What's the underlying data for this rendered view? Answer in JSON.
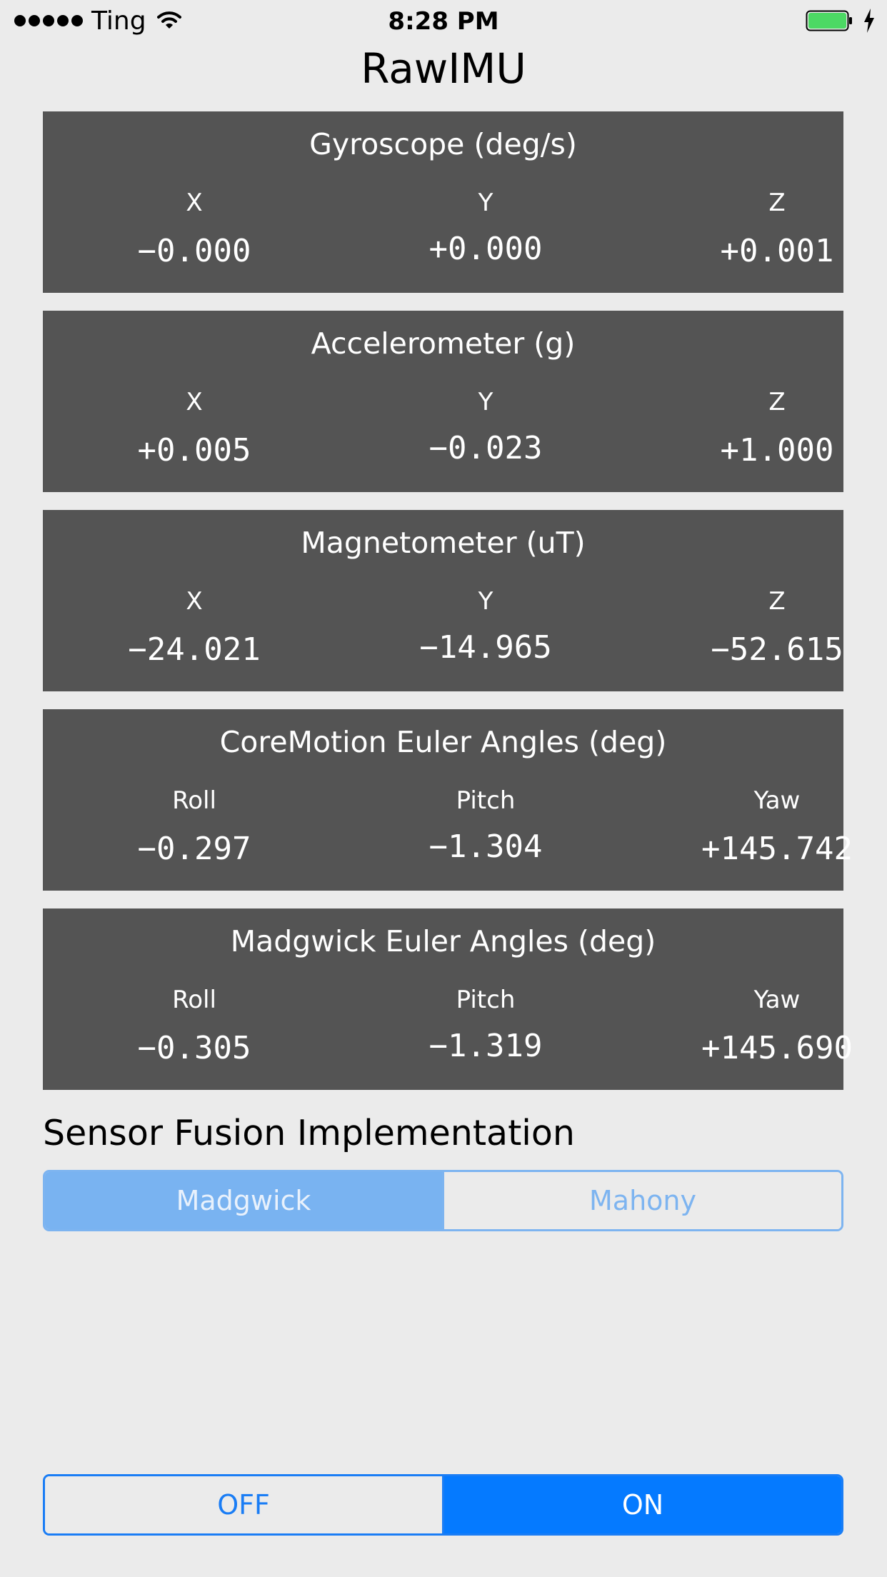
{
  "status_bar": {
    "carrier": "Ting",
    "time": "8:28 PM",
    "signal_bars": 5,
    "battery_level": 1.0,
    "icons": [
      "signal-dots-icon",
      "wifi-icon",
      "battery-icon",
      "charging-bolt-icon"
    ]
  },
  "app": {
    "title": "RawIMU"
  },
  "panels": [
    {
      "title": "Gyroscope (deg/s)",
      "columns": [
        {
          "label": "X",
          "value": "−0.000"
        },
        {
          "label": "Y",
          "value": "+0.000"
        },
        {
          "label": "Z",
          "value": "+0.001"
        }
      ]
    },
    {
      "title": "Accelerometer (g)",
      "columns": [
        {
          "label": "X",
          "value": "+0.005"
        },
        {
          "label": "Y",
          "value": "−0.023"
        },
        {
          "label": "Z",
          "value": "+1.000"
        }
      ]
    },
    {
      "title": "Magnetometer (uT)",
      "columns": [
        {
          "label": "X",
          "value": "−24.021"
        },
        {
          "label": "Y",
          "value": "−14.965"
        },
        {
          "label": "Z",
          "value": "−52.615"
        }
      ]
    },
    {
      "title": "CoreMotion Euler Angles (deg)",
      "columns": [
        {
          "label": "Roll",
          "value": "−0.297"
        },
        {
          "label": "Pitch",
          "value": "−1.304"
        },
        {
          "label": "Yaw",
          "value": "+145.742"
        }
      ]
    },
    {
      "title": "Madgwick Euler Angles (deg)",
      "columns": [
        {
          "label": "Roll",
          "value": "−0.305"
        },
        {
          "label": "Pitch",
          "value": "−1.319"
        },
        {
          "label": "Yaw",
          "value": "+145.690"
        }
      ]
    }
  ],
  "fusion": {
    "section_label": "Sensor Fusion Implementation",
    "options": [
      "Madgwick",
      "Mahony"
    ],
    "selected": "Madgwick"
  },
  "power": {
    "options": [
      "OFF",
      "ON"
    ],
    "selected": "ON"
  },
  "colors": {
    "background": "#ebebeb",
    "panel": "#545454",
    "accent": "#057aff",
    "accent_light": "#79b3f1",
    "battery": "#4cd964"
  }
}
